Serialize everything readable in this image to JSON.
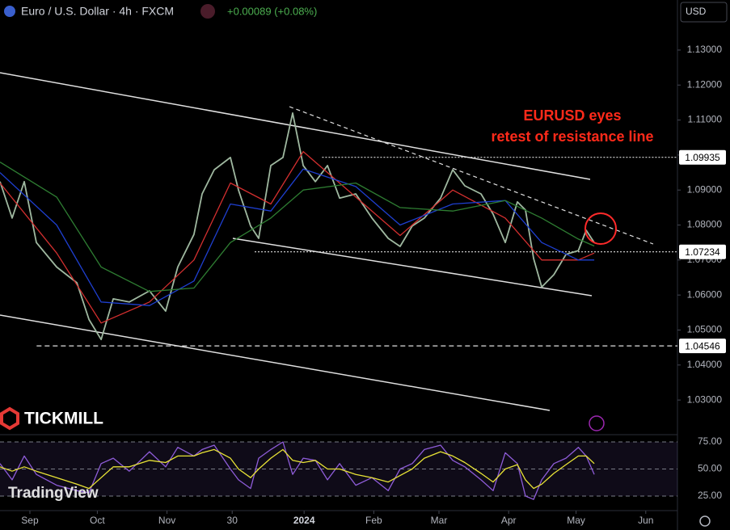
{
  "header": {
    "symbol": "Euro / U.S. Dollar · 4h · FXCM",
    "change": "+0.00089 (+0.08%)",
    "currency": "USD"
  },
  "annotation": [
    "EURUSD eyes",
    "retest of resistance line"
  ],
  "branding": {
    "broker": "TICKMILL",
    "platform": "TradingView"
  },
  "chart_data": [
    {
      "type": "line",
      "xlim": [
        -13.3,
        288.1
      ],
      "ylim": [
        1.0201,
        1.1443
      ],
      "xticks": [
        {
          "value": 0,
          "label": "Sep"
        },
        {
          "value": 30,
          "label": "Oct"
        },
        {
          "value": 61,
          "label": "Nov"
        },
        {
          "value": 90,
          "label": "30"
        },
        {
          "value": 122,
          "label": "2024"
        },
        {
          "value": 153,
          "label": "Feb"
        },
        {
          "value": 182,
          "label": "Mar"
        },
        {
          "value": 213,
          "label": "Apr"
        },
        {
          "value": 243,
          "label": "May"
        },
        {
          "value": 274,
          "label": "Jun"
        }
      ],
      "yticks": [
        {
          "value": 1.03,
          "label": "1.03000"
        },
        {
          "value": 1.04,
          "label": "1.04000"
        },
        {
          "value": 1.05,
          "label": "1.05000"
        },
        {
          "value": 1.06,
          "label": "1.06000"
        },
        {
          "value": 1.07,
          "label": "1.07000"
        },
        {
          "value": 1.08,
          "label": "1.08000"
        },
        {
          "value": 1.09,
          "label": "1.09000"
        },
        {
          "value": 1.1,
          "label": "1.10000"
        },
        {
          "value": 1.11,
          "label": "1.11000"
        },
        {
          "value": 1.12,
          "label": "1.12000"
        },
        {
          "value": 1.13,
          "label": "1.13000"
        }
      ],
      "series": [
        {
          "color": "#9fb8a0",
          "x": [
            -13.3,
            -7.9,
            -2.5,
            2.9,
            11.9,
            20.9,
            26.3,
            31.7,
            37.1,
            44.2,
            53.2,
            60.4,
            65.8,
            73.0,
            76.6,
            82.0,
            89.2,
            92.8,
            98.2,
            101.8,
            107.2,
            112.6,
            116.9,
            121.6,
            127.0,
            132.4,
            137.8,
            145.0,
            152.2,
            159.4,
            164.7,
            170.1,
            175.5,
            182.7,
            188.1,
            193.5,
            200.7,
            206.1,
            211.5,
            216.9,
            220.5,
            224.1,
            227.7,
            233.1,
            238.5,
            244.0,
            247.5,
            251.1
          ],
          "values": [
            1.0924,
            1.082,
            1.0924,
            1.075,
            1.068,
            1.0635,
            1.053,
            1.0473,
            1.0589,
            1.058,
            1.0612,
            1.0554,
            1.068,
            1.0773,
            1.0889,
            1.0958,
            1.0993,
            1.09,
            1.0797,
            1.0762,
            1.097,
            1.0993,
            1.112,
            1.097,
            1.0924,
            1.097,
            1.0877,
            1.0889,
            1.082,
            1.0762,
            1.0739,
            1.0797,
            1.082,
            1.0877,
            1.0958,
            1.0912,
            1.0889,
            1.0831,
            1.075,
            1.0866,
            1.0843,
            1.0704,
            1.0623,
            1.0658,
            1.0716,
            1.0727,
            1.0785,
            1.075
          ]
        },
        {
          "color": "#d32f2f",
          "x": [
            -13.3,
            11.9,
            31.7,
            53.2,
            73.0,
            89.2,
            107.2,
            121.6,
            145.0,
            164.7,
            188.1,
            211.5,
            227.7,
            244.0,
            251.1
          ],
          "values": [
            1.092,
            1.072,
            1.052,
            1.058,
            1.07,
            1.092,
            1.086,
            1.101,
            1.088,
            1.077,
            1.09,
            1.082,
            1.07,
            1.07,
            1.072
          ]
        },
        {
          "color": "#1e3fd0",
          "x": [
            -13.3,
            11.9,
            31.7,
            53.2,
            73.0,
            89.2,
            107.2,
            121.6,
            145.0,
            164.7,
            188.1,
            211.5,
            227.7,
            244.0,
            251.1
          ],
          "values": [
            1.095,
            1.08,
            1.058,
            1.057,
            1.064,
            1.086,
            1.084,
            1.096,
            1.091,
            1.08,
            1.086,
            1.087,
            1.075,
            1.07,
            1.07
          ]
        },
        {
          "color": "#2e7d32",
          "x": [
            -13.3,
            11.9,
            31.7,
            53.2,
            73.0,
            89.2,
            107.2,
            121.6,
            145.0,
            164.7,
            188.1,
            211.5,
            227.7,
            244.0,
            251.1
          ],
          "values": [
            1.098,
            1.088,
            1.068,
            1.061,
            1.062,
            1.075,
            1.082,
            1.09,
            1.092,
            1.085,
            1.084,
            1.087,
            1.082,
            1.076,
            1.074
          ]
        }
      ],
      "levels": [
        {
          "value": 1.09935,
          "from": 130
        },
        {
          "value": 1.07234,
          "from": 100
        },
        {
          "value": 1.04546,
          "from": 3
        }
      ]
    },
    {
      "type": "line",
      "xlim": [
        -13.3,
        288.1
      ],
      "ylim": [
        11.6,
        81.7
      ],
      "yticks": [
        {
          "value": 25,
          "label": "25.00"
        },
        {
          "value": 50,
          "label": "50.00"
        },
        {
          "value": 75,
          "label": "75.00"
        }
      ],
      "series": [
        {
          "color": "#8e5cd8",
          "x": [
            -13.3,
            -7.9,
            -2.5,
            2.9,
            11.9,
            20.9,
            26.3,
            31.7,
            37.1,
            44.2,
            53.2,
            60.4,
            65.8,
            73.0,
            76.6,
            82.0,
            89.2,
            92.8,
            98.2,
            101.8,
            107.2,
            112.6,
            116.9,
            121.6,
            127.0,
            132.4,
            137.8,
            145.0,
            152.2,
            159.4,
            164.7,
            170.1,
            175.5,
            182.7,
            188.1,
            193.5,
            200.7,
            206.1,
            211.5,
            216.9,
            220.5,
            224.1,
            227.7,
            233.1,
            238.5,
            244.0,
            247.5,
            251.1
          ],
          "values": [
            55,
            40,
            62,
            45,
            35,
            30,
            28,
            55,
            60,
            48,
            66,
            52,
            70,
            62,
            68,
            72,
            50,
            40,
            32,
            60,
            68,
            75,
            45,
            60,
            58,
            40,
            55,
            35,
            42,
            30,
            50,
            55,
            68,
            72,
            58,
            52,
            40,
            30,
            65,
            55,
            25,
            22,
            40,
            55,
            60,
            70,
            62,
            45
          ]
        },
        {
          "color": "#e8e336",
          "x": [
            -13.3,
            -7.9,
            -2.5,
            2.9,
            11.9,
            20.9,
            26.3,
            31.7,
            37.1,
            44.2,
            53.2,
            60.4,
            65.8,
            73.0,
            76.6,
            82.0,
            89.2,
            92.8,
            98.2,
            101.8,
            107.2,
            112.6,
            116.9,
            121.6,
            127.0,
            132.4,
            137.8,
            145.0,
            152.2,
            159.4,
            164.7,
            170.1,
            175.5,
            182.7,
            188.1,
            193.5,
            200.7,
            206.1,
            211.5,
            216.9,
            220.5,
            224.1,
            227.7,
            233.1,
            238.5,
            244.0,
            247.5,
            251.1
          ],
          "values": [
            52,
            48,
            52,
            48,
            42,
            36,
            32,
            42,
            52,
            52,
            58,
            56,
            62,
            62,
            65,
            68,
            60,
            50,
            42,
            50,
            60,
            68,
            58,
            56,
            58,
            50,
            50,
            45,
            42,
            38,
            44,
            50,
            60,
            66,
            62,
            56,
            46,
            38,
            50,
            54,
            40,
            32,
            36,
            46,
            54,
            62,
            62,
            55
          ]
        }
      ]
    }
  ]
}
